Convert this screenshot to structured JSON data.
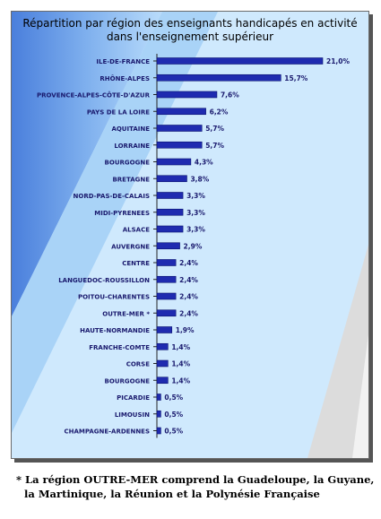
{
  "chart_data": {
    "type": "bar",
    "orientation": "horizontal",
    "title": "Répartition par région des enseignants handicapés en activité dans l'enseignement supérieur",
    "title_lines": [
      "Répartition par région des enseignants handicapés en activité",
      "dans l'enseignement supérieur"
    ],
    "categories": [
      "ILE-DE-FRANCE",
      "RHÔNE-ALPES",
      "PROVENCE-ALPES-CÔTE-D'AZUR",
      "PAYS DE LA LOIRE",
      "AQUITAINE",
      "LORRAINE",
      "BOURGOGNE",
      "BRETAGNE",
      "NORD-PAS-DE-CALAIS",
      "MIDI-PYRENEES",
      "ALSACE",
      "AUVERGNE",
      "CENTRE",
      "LANGUEDOC-ROUSSILLON",
      "POITOU-CHARENTES",
      "OUTRE-MER *",
      "HAUTE-NORMANDIE",
      "FRANCHE-COMTE",
      "CORSE",
      "BOURGOGNE",
      "PICARDIE",
      "LIMOUSIN",
      "CHAMPAGNE-ARDENNES"
    ],
    "values": [
      21.0,
      15.7,
      7.6,
      6.2,
      5.7,
      5.7,
      4.3,
      3.8,
      3.3,
      3.3,
      3.3,
      2.9,
      2.4,
      2.4,
      2.4,
      2.4,
      1.9,
      1.4,
      1.4,
      1.4,
      0.5,
      0.5,
      0.5
    ],
    "value_labels": [
      "21,0%",
      "15,7%",
      "7,6%",
      "6,2%",
      "5,7%",
      "5,7%",
      "4,3%",
      "3,8%",
      "3,3%",
      "3,3%",
      "3,3%",
      "2,9%",
      "2,4%",
      "2,4%",
      "2,4%",
      "2,4%",
      "1,9%",
      "1,4%",
      "1,4%",
      "1,4%",
      "0,5%",
      "0,5%",
      "0,5%"
    ],
    "xlim": [
      0,
      21.0
    ],
    "grid": false,
    "legend": "none",
    "bar_color": "#1f2bb0",
    "label_color": "#1a1a6e"
  },
  "footnote": {
    "line1": "* La région OUTRE-MER comprend la Guadeloupe, la Guyane,",
    "line2": "la Martinique, la Réunion et la Polynésie Française"
  }
}
